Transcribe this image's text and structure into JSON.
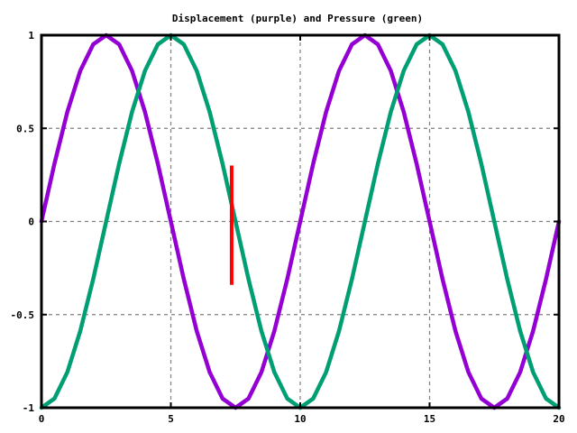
{
  "chart_data": {
    "type": "line",
    "title": "Displacement (purple) and Pressure (green)",
    "xlabel": "",
    "ylabel": "",
    "xlim": [
      0,
      20
    ],
    "ylim": [
      -1,
      1
    ],
    "grid": true,
    "x_ticks": [
      0,
      5,
      10,
      15,
      20
    ],
    "y_ticks": [
      -1,
      -0.5,
      0,
      0.5,
      1
    ],
    "x_tick_labels": [
      "0",
      "5",
      "10",
      "15",
      "20"
    ],
    "y_tick_labels": [
      "-1",
      "-0.5",
      "0",
      "0.5",
      "1"
    ],
    "series": [
      {
        "color": "#9400d3",
        "x": [
          0,
          0.5,
          1,
          1.5,
          2,
          2.5,
          3,
          3.5,
          4,
          4.5,
          5,
          5.5,
          6,
          6.5,
          7,
          7.5,
          8,
          8.5,
          9,
          9.5,
          10,
          10.5,
          11,
          11.5,
          12,
          12.5,
          13,
          13.5,
          14,
          14.5,
          15,
          15.5,
          16,
          16.5,
          17,
          17.5,
          18,
          18.5,
          19,
          19.5,
          20
        ],
        "y": [
          0,
          0.309,
          0.588,
          0.809,
          0.951,
          1,
          0.951,
          0.809,
          0.588,
          0.309,
          0,
          -0.309,
          -0.588,
          -0.809,
          -0.951,
          -1,
          -0.951,
          -0.809,
          -0.588,
          -0.309,
          0,
          0.309,
          0.588,
          0.809,
          0.951,
          1,
          0.951,
          0.809,
          0.588,
          0.309,
          0,
          -0.309,
          -0.588,
          -0.809,
          -0.951,
          -1,
          -0.951,
          -0.809,
          -0.588,
          -0.309,
          0
        ]
      },
      {
        "color": "#009e73",
        "x": [
          0,
          0.5,
          1,
          1.5,
          2,
          2.5,
          3,
          3.5,
          4,
          4.5,
          5,
          5.5,
          6,
          6.5,
          7,
          7.5,
          8,
          8.5,
          9,
          9.5,
          10,
          10.5,
          11,
          11.5,
          12,
          12.5,
          13,
          13.5,
          14,
          14.5,
          15,
          15.5,
          16,
          16.5,
          17,
          17.5,
          18,
          18.5,
          19,
          19.5,
          20
        ],
        "y": [
          -1,
          -0.951,
          -0.809,
          -0.588,
          -0.309,
          0,
          0.309,
          0.588,
          0.809,
          0.951,
          1,
          0.951,
          0.809,
          0.588,
          0.309,
          0,
          -0.309,
          -0.588,
          -0.809,
          -0.951,
          -1,
          -0.951,
          -0.809,
          -0.588,
          -0.309,
          0,
          0.309,
          0.588,
          0.809,
          0.951,
          1,
          0.951,
          0.809,
          0.588,
          0.309,
          0,
          -0.309,
          -0.588,
          -0.809,
          -0.951,
          -1
        ]
      }
    ],
    "marker": {
      "color": "#ff0000",
      "x": 7.35,
      "y_range": [
        -0.34,
        0.3
      ]
    }
  }
}
